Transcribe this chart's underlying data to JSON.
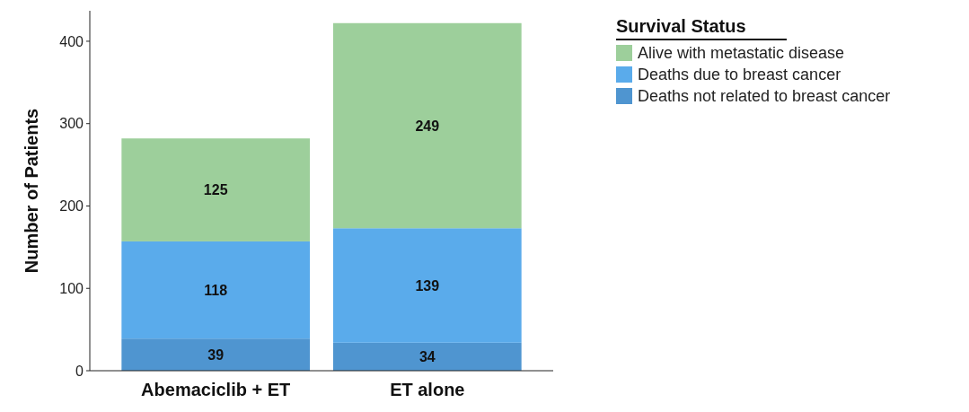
{
  "chart_data": {
    "type": "bar",
    "stacked": true,
    "categories": [
      "Abemaciclib + ET",
      "ET alone"
    ],
    "series": [
      {
        "name": "Deaths not related to breast cancer",
        "color": "#4f95d0",
        "values": [
          39,
          34
        ]
      },
      {
        "name": "Deaths due to breast cancer",
        "color": "#5aabeb",
        "values": [
          118,
          139
        ]
      },
      {
        "name": "Alive with metastatic disease",
        "color": "#9dcf9b",
        "values": [
          125,
          249
        ]
      }
    ],
    "ylabel": "Number of Patients",
    "legend_title": "Survival Status",
    "legend": "top right",
    "data_labels": true,
    "ylim": [
      0,
      437
    ],
    "yticks": [
      0,
      100,
      200,
      300,
      400
    ]
  }
}
